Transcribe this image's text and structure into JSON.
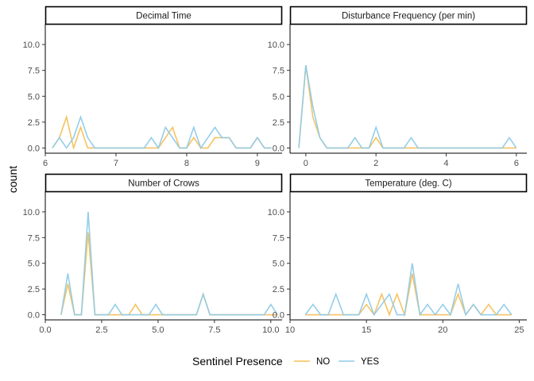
{
  "chart_data": {
    "type": "line",
    "ylabel": "count",
    "legend": {
      "title": "Sentinel Presence",
      "position": "bottom",
      "items": [
        {
          "label": "NO",
          "color": "#F5C05A"
        },
        {
          "label": "YES",
          "color": "#8FCBE8"
        }
      ]
    },
    "ylim": [
      -0.5,
      12
    ],
    "yticks": [
      0.0,
      2.5,
      5.0,
      7.5,
      10.0
    ],
    "ytick_labels": [
      "0.0",
      "2.5",
      "5.0",
      "7.5",
      "10.0"
    ],
    "panels": [
      {
        "title": "Decimal Time",
        "xlim": [
          6.0,
          9.35
        ],
        "xticks": [
          6,
          7,
          8,
          9
        ],
        "xtick_labels": [
          "6",
          "7",
          "8",
          "9"
        ],
        "series": [
          {
            "name": "NO",
            "x": [
              6.1,
              6.2,
              6.3,
              6.4,
              6.5,
              6.6,
              6.7,
              6.8,
              6.9,
              7.0,
              7.1,
              7.2,
              7.3,
              7.4,
              7.5,
              7.6,
              7.7,
              7.8,
              7.9,
              8.0,
              8.1,
              8.2,
              8.3,
              8.4,
              8.5,
              8.6,
              8.7,
              8.8,
              8.9,
              9.0,
              9.1,
              9.2
            ],
            "y": [
              0,
              1,
              3,
              0,
              2,
              0,
              0,
              0,
              0,
              0,
              0,
              0,
              0,
              0,
              0,
              0,
              1,
              2,
              0,
              0,
              1,
              0,
              0,
              1,
              1,
              1,
              0,
              0,
              0,
              1,
              0,
              0
            ]
          },
          {
            "name": "YES",
            "x": [
              6.1,
              6.2,
              6.3,
              6.4,
              6.5,
              6.6,
              6.7,
              6.8,
              6.9,
              7.0,
              7.1,
              7.2,
              7.3,
              7.4,
              7.5,
              7.6,
              7.7,
              7.8,
              7.9,
              8.0,
              8.1,
              8.2,
              8.3,
              8.4,
              8.5,
              8.6,
              8.7,
              8.8,
              8.9,
              9.0,
              9.1,
              9.2
            ],
            "y": [
              0,
              1,
              0,
              1,
              3,
              1,
              0,
              0,
              0,
              0,
              0,
              0,
              0,
              0,
              1,
              0,
              2,
              1,
              0,
              0,
              2,
              0,
              1,
              2,
              1,
              1,
              0,
              0,
              0,
              1,
              0,
              0
            ]
          }
        ]
      },
      {
        "title": "Disturbance Frequency (per min)",
        "xlim": [
          -0.45,
          6.3
        ],
        "xticks": [
          0,
          2,
          4,
          6
        ],
        "xtick_labels": [
          "0",
          "2",
          "4",
          "6"
        ],
        "series": [
          {
            "name": "NO",
            "x": [
              -0.2,
              0.0,
              0.2,
              0.4,
              0.6,
              0.8,
              1.0,
              1.2,
              1.4,
              1.6,
              1.8,
              2.0,
              2.2,
              2.4,
              2.6,
              2.8,
              3.0,
              3.2,
              3.4,
              3.6,
              3.8,
              4.0,
              4.2,
              4.4,
              4.6,
              4.8,
              5.0,
              5.2,
              5.4,
              5.6,
              5.8,
              6.0
            ],
            "y": [
              0,
              8,
              3,
              1,
              0,
              0,
              0,
              0,
              0,
              0,
              0,
              1,
              0,
              0,
              0,
              0,
              0,
              0,
              0,
              0,
              0,
              0,
              0,
              0,
              0,
              0,
              0,
              0,
              0,
              0,
              0,
              0
            ]
          },
          {
            "name": "YES",
            "x": [
              -0.2,
              0.0,
              0.2,
              0.4,
              0.6,
              0.8,
              1.0,
              1.2,
              1.4,
              1.6,
              1.8,
              2.0,
              2.2,
              2.4,
              2.6,
              2.8,
              3.0,
              3.2,
              3.4,
              3.6,
              3.8,
              4.0,
              4.2,
              4.4,
              4.6,
              4.8,
              5.0,
              5.2,
              5.4,
              5.6,
              5.8,
              6.0
            ],
            "y": [
              0,
              8,
              4,
              1,
              0,
              0,
              0,
              0,
              1,
              0,
              0,
              2,
              0,
              0,
              0,
              0,
              1,
              0,
              0,
              0,
              0,
              0,
              0,
              0,
              0,
              0,
              0,
              0,
              0,
              0,
              1,
              0
            ]
          }
        ]
      },
      {
        "title": "Number of Crows",
        "xlim": [
          0.0,
          10.5
        ],
        "xticks": [
          0.0,
          2.5,
          5.0,
          7.5,
          10.0
        ],
        "xtick_labels": [
          "0.0",
          "2.5",
          "5.0",
          "7.5",
          "10.0"
        ],
        "series": [
          {
            "name": "NO",
            "x": [
              0.7,
              1.0,
              1.3,
              1.6,
              1.9,
              2.2,
              2.5,
              2.8,
              3.1,
              3.4,
              3.7,
              4.0,
              4.3,
              4.6,
              4.9,
              5.2,
              5.5,
              5.8,
              6.1,
              6.4,
              6.7,
              7.0,
              7.3,
              7.6,
              7.9,
              8.2,
              8.5,
              8.8,
              9.1,
              9.4,
              9.7,
              10.0,
              10.3
            ],
            "y": [
              0,
              3,
              0,
              0,
              8,
              0,
              0,
              0,
              0,
              0,
              0,
              1,
              0,
              0,
              0,
              0,
              0,
              0,
              0,
              0,
              0,
              2,
              0,
              0,
              0,
              0,
              0,
              0,
              0,
              0,
              0,
              0,
              0
            ]
          },
          {
            "name": "YES",
            "x": [
              0.7,
              1.0,
              1.3,
              1.6,
              1.9,
              2.2,
              2.5,
              2.8,
              3.1,
              3.4,
              3.7,
              4.0,
              4.3,
              4.6,
              4.9,
              5.2,
              5.5,
              5.8,
              6.1,
              6.4,
              6.7,
              7.0,
              7.3,
              7.6,
              7.9,
              8.2,
              8.5,
              8.8,
              9.1,
              9.4,
              9.7,
              10.0,
              10.3
            ],
            "y": [
              0,
              4,
              0,
              0,
              10,
              0,
              0,
              0,
              1,
              0,
              0,
              0,
              0,
              0,
              1,
              0,
              0,
              0,
              0,
              0,
              0,
              2,
              0,
              0,
              0,
              0,
              0,
              0,
              0,
              0,
              0,
              1,
              0
            ]
          }
        ]
      },
      {
        "title": "Temperature (deg. C)",
        "xlim": [
          10.0,
          25.5
        ],
        "xticks": [
          10,
          15,
          20,
          25
        ],
        "xtick_labels": [
          "10",
          "15",
          "20",
          "25"
        ],
        "series": [
          {
            "name": "NO",
            "x": [
              11.0,
              11.5,
              12.0,
              12.5,
              13.0,
              13.5,
              14.0,
              14.5,
              15.0,
              15.5,
              16.0,
              16.5,
              17.0,
              17.5,
              18.0,
              18.5,
              19.0,
              19.5,
              20.0,
              20.5,
              21.0,
              21.5,
              22.0,
              22.5,
              23.0,
              23.5,
              24.0,
              24.5
            ],
            "y": [
              0,
              0,
              0,
              0,
              0,
              0,
              0,
              0,
              1,
              0,
              2,
              0,
              2,
              0,
              4,
              0,
              0,
              0,
              0,
              0,
              2,
              0,
              1,
              0,
              1,
              0,
              0,
              0
            ]
          },
          {
            "name": "YES",
            "x": [
              11.0,
              11.5,
              12.0,
              12.5,
              13.0,
              13.5,
              14.0,
              14.5,
              15.0,
              15.5,
              16.0,
              16.5,
              17.0,
              17.5,
              18.0,
              18.5,
              19.0,
              19.5,
              20.0,
              20.5,
              21.0,
              21.5,
              22.0,
              22.5,
              23.0,
              23.5,
              24.0,
              24.5
            ],
            "y": [
              0,
              1,
              0,
              0,
              2,
              0,
              0,
              0,
              2,
              0,
              1,
              2,
              0,
              0,
              5,
              0,
              1,
              0,
              1,
              0,
              3,
              0,
              1,
              0,
              0,
              0,
              1,
              0
            ]
          }
        ]
      }
    ]
  }
}
